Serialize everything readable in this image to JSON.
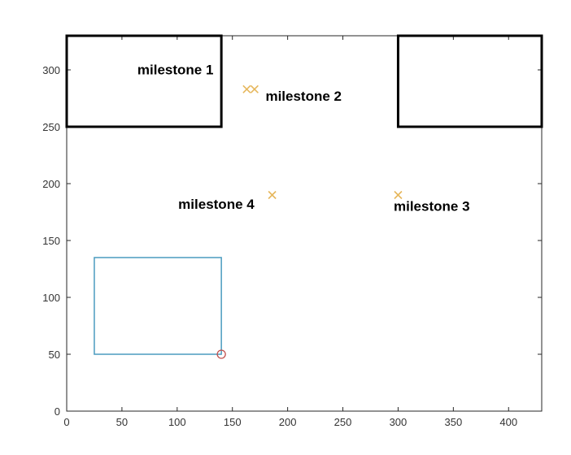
{
  "chart_data": {
    "type": "scatter",
    "xlim": [
      0,
      430
    ],
    "ylim": [
      0,
      330
    ],
    "x_ticks": [
      0,
      50,
      100,
      150,
      200,
      250,
      300,
      350,
      400
    ],
    "y_ticks": [
      0,
      50,
      100,
      150,
      200,
      250,
      300
    ],
    "grid": false,
    "obstacles": [
      {
        "x0": 0,
        "y0": 250,
        "x1": 140,
        "y1": 330,
        "color": "#000000"
      },
      {
        "x0": 300,
        "y0": 250,
        "x1": 430,
        "y1": 330,
        "color": "#000000"
      }
    ],
    "rectangle": {
      "x0": 25,
      "y0": 50,
      "x1": 140,
      "y1": 135,
      "color": "#4a9bbf"
    },
    "circle_marker": {
      "x": 140,
      "y": 50,
      "color": "#c0504d"
    },
    "x_markers": [
      {
        "x": 163,
        "y": 283
      },
      {
        "x": 170,
        "y": 283
      },
      {
        "x": 186,
        "y": 190
      },
      {
        "x": 300,
        "y": 190
      }
    ],
    "x_marker_color": "#e6b75c",
    "annotations": [
      {
        "text": "milestone 1",
        "x": 64,
        "y": 296
      },
      {
        "text": "milestone 2",
        "x": 180,
        "y": 273
      },
      {
        "text": "milestone 4",
        "x": 101,
        "y": 178
      },
      {
        "text": "milestone 3",
        "x": 296,
        "y": 176
      }
    ]
  }
}
